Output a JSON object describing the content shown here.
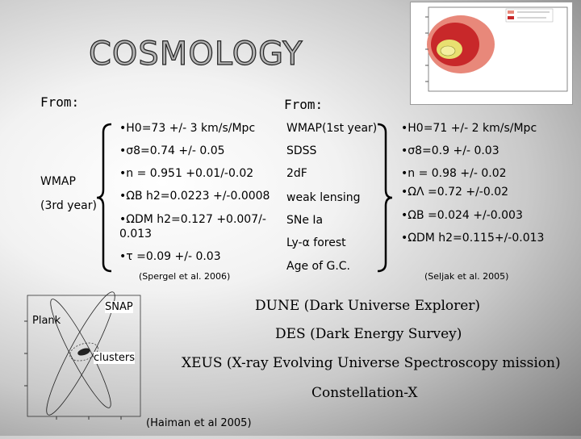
{
  "slide": {
    "title": "COSMOLOGY",
    "from_left": "From:",
    "from_right": "From:",
    "wmap_label": "WMAP",
    "wmap_sub": "(3rd year)",
    "col1": {
      "h0": "H0=73 +/- 3 km/s/Mpc",
      "sigma8": "σ8=0.74 +/- 0.05",
      "n": "n = 0.951 +0.01/-0.02",
      "omega_b": "ΩB h2=0.0223 +/-0.0008",
      "omega_dm_1": "ΩDM h2=0.127 +0.007/-",
      "omega_dm_2": "0.013",
      "tau": "τ =0.09 +/- 0.03",
      "citation": "(Spergel et al. 2006)"
    },
    "col2": [
      "WMAP(1st year)",
      "SDSS",
      "2dF",
      "weak lensing",
      "SNe Ia",
      "Ly-α forest",
      "Age of G.C."
    ],
    "col3": {
      "h0": "H0=71 +/- 2 km/s/Mpc",
      "sigma8": "σ8=0.9 +/- 0.03",
      "n": "n = 0.98 +/- 0.02",
      "omega_lambda": "ΩΛ =0.72 +/-0.02",
      "omega_b": "ΩB =0.024 +/-0.003",
      "omega_dm": "ΩDM h2=0.115+/-0.013",
      "citation": "(Seljak et al. 2005)"
    },
    "missions": [
      "DUNE (Dark Universe Explorer)",
      "DES (Dark Energy Survey)",
      "XEUS (X-ray Evolving Universe Spectroscopy mission)",
      "Constellation-X"
    ],
    "inset": {
      "snap": "SNAP",
      "plank": "Plank",
      "clusters": "clusters",
      "citation": "(Haiman et al 2005)"
    }
  },
  "colors": {
    "contour_outer": "#e8887a",
    "contour_mid": "#c8282a",
    "contour_inner": "#e8e070",
    "title_fill": "#b5b5b5"
  }
}
